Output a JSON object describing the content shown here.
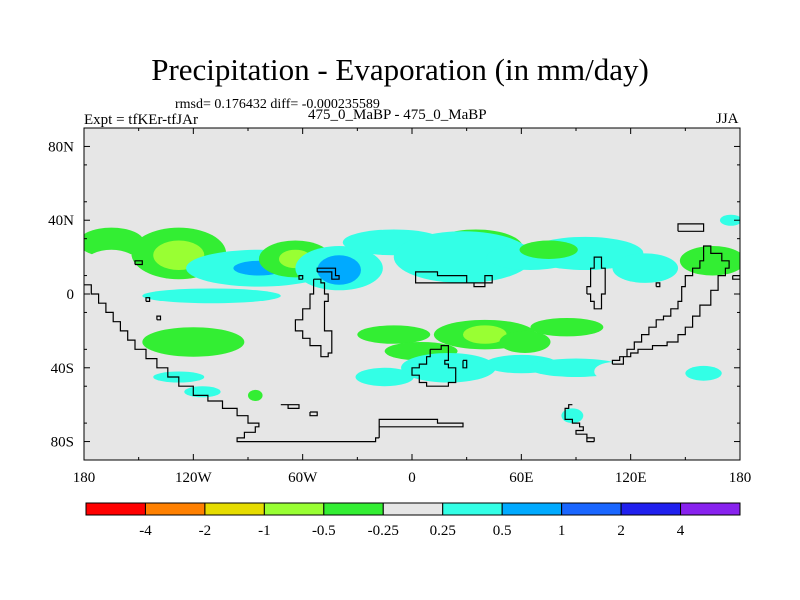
{
  "chart_data": {
    "type": "heatmap",
    "title": "Precipitation - Evaporation (in mm/day)",
    "stats_label": "rmsd= 0.176432 diff= -0.000235589",
    "experiment_label": "Expt = tfKEr-tfJAr",
    "period_label": "475_0_MaBP - 475_0_MaBP",
    "season_label": "JJA",
    "xlim": [
      -180,
      180
    ],
    "ylim": [
      -90,
      90
    ],
    "x_ticks": [
      {
        "v": -180,
        "label": "180"
      },
      {
        "v": -120,
        "label": "120W"
      },
      {
        "v": -60,
        "label": "60W"
      },
      {
        "v": 0,
        "label": "0"
      },
      {
        "v": 60,
        "label": "60E"
      },
      {
        "v": 120,
        "label": "120E"
      },
      {
        "v": 180,
        "label": "180"
      }
    ],
    "y_ticks": [
      {
        "v": 80,
        "label": "80N"
      },
      {
        "v": 40,
        "label": "40N"
      },
      {
        "v": 0,
        "label": "0"
      },
      {
        "v": -40,
        "label": "40S"
      },
      {
        "v": -80,
        "label": "80S"
      }
    ],
    "colorbar": {
      "colors": [
        "#ff0000",
        "#ff8000",
        "#e6dc00",
        "#99ff33",
        "#33ee33",
        "#e6e6e6",
        "#33ffe6",
        "#00aaff",
        "#1a66ff",
        "#2020ee",
        "#8822ee"
      ],
      "labels": [
        "-4",
        "-2",
        "-1",
        "-0.5",
        "-0.25",
        "0.25",
        "0.5",
        "1",
        "2",
        "4"
      ]
    },
    "background_color": "#e6e6e6",
    "regions": [
      {
        "lon": -165,
        "lat": 28,
        "w": 18,
        "h": 8,
        "level": -0.5
      },
      {
        "lon": -165,
        "lat": 17,
        "w": 14,
        "h": 7,
        "level": -0.25
      },
      {
        "lon": -128,
        "lat": 22,
        "w": 26,
        "h": 14,
        "level": -0.5
      },
      {
        "lon": -128,
        "lat": 21,
        "w": 14,
        "h": 8,
        "level": -1
      },
      {
        "lon": -84,
        "lat": 14,
        "w": 40,
        "h": 10,
        "level": 0.25
      },
      {
        "lon": -84,
        "lat": 14,
        "w": 14,
        "h": 4,
        "level": 0.5
      },
      {
        "lon": -64,
        "lat": 19,
        "w": 20,
        "h": 10,
        "level": -0.5
      },
      {
        "lon": -64,
        "lat": 19,
        "w": 9,
        "h": 5,
        "level": -1
      },
      {
        "lon": -40,
        "lat": 14,
        "w": 24,
        "h": 12,
        "level": 0.25
      },
      {
        "lon": -40,
        "lat": 13,
        "w": 12,
        "h": 8,
        "level": 0.5
      },
      {
        "lon": -110,
        "lat": -1,
        "w": 38,
        "h": 4,
        "level": 0.25
      },
      {
        "lon": -140,
        "lat": -33,
        "w": 10,
        "h": 5,
        "level": -0.25
      },
      {
        "lon": -120,
        "lat": -26,
        "w": 28,
        "h": 8,
        "level": -0.5
      },
      {
        "lon": -128,
        "lat": -45,
        "w": 14,
        "h": 3,
        "level": 0.25
      },
      {
        "lon": -115,
        "lat": -53,
        "w": 10,
        "h": 3,
        "level": 0.25
      },
      {
        "lon": -10,
        "lat": 28,
        "w": 28,
        "h": 7,
        "level": 0.25
      },
      {
        "lon": 35,
        "lat": 25,
        "w": 26,
        "h": 10,
        "level": -0.5
      },
      {
        "lon": 33,
        "lat": 25,
        "w": 12,
        "h": 5,
        "level": -1
      },
      {
        "lon": 28,
        "lat": 20,
        "w": 38,
        "h": 14,
        "level": 0.25
      },
      {
        "lon": 65,
        "lat": 20,
        "w": 24,
        "h": 7,
        "level": 0.25
      },
      {
        "lon": 95,
        "lat": 22,
        "w": 32,
        "h": 9,
        "level": 0.25
      },
      {
        "lon": 75,
        "lat": 24,
        "w": 16,
        "h": 5,
        "level": -0.5
      },
      {
        "lon": 128,
        "lat": 14,
        "w": 18,
        "h": 8,
        "level": 0.25
      },
      {
        "lon": 165,
        "lat": 18,
        "w": 18,
        "h": 8,
        "level": -0.5
      },
      {
        "lon": 175,
        "lat": 40,
        "w": 6,
        "h": 3,
        "level": 0.25
      },
      {
        "lon": -10,
        "lat": -22,
        "w": 20,
        "h": 5,
        "level": -0.5
      },
      {
        "lon": 5,
        "lat": -31,
        "w": 20,
        "h": 5,
        "level": -0.5
      },
      {
        "lon": 40,
        "lat": -22,
        "w": 28,
        "h": 8,
        "level": -0.5
      },
      {
        "lon": 40,
        "lat": -22,
        "w": 12,
        "h": 5,
        "level": -1
      },
      {
        "lon": 62,
        "lat": -26,
        "w": 14,
        "h": 6,
        "level": -0.5
      },
      {
        "lon": 85,
        "lat": -18,
        "w": 20,
        "h": 5,
        "level": -0.5
      },
      {
        "lon": -15,
        "lat": -45,
        "w": 16,
        "h": 5,
        "level": 0.25
      },
      {
        "lon": 20,
        "lat": -40,
        "w": 26,
        "h": 8,
        "level": 0.25
      },
      {
        "lon": 60,
        "lat": -38,
        "w": 20,
        "h": 5,
        "level": 0.25
      },
      {
        "lon": 90,
        "lat": -40,
        "w": 26,
        "h": 5,
        "level": 0.25
      },
      {
        "lon": 110,
        "lat": -42,
        "w": 10,
        "h": 5,
        "level": -0.25
      },
      {
        "lon": 160,
        "lat": -43,
        "w": 10,
        "h": 4,
        "level": 0.25
      },
      {
        "lon": -86,
        "lat": -55,
        "w": 4,
        "h": 3,
        "level": -0.5
      },
      {
        "lon": 88,
        "lat": -66,
        "w": 6,
        "h": 4,
        "level": 0.25
      }
    ],
    "coastlines": [
      [
        [
          -180,
          5
        ],
        [
          -176,
          5
        ],
        [
          -176,
          0
        ],
        [
          -172,
          0
        ],
        [
          -172,
          -5
        ],
        [
          -168,
          -5
        ],
        [
          -168,
          -10
        ],
        [
          -164,
          -10
        ],
        [
          -164,
          -15
        ],
        [
          -160,
          -15
        ],
        [
          -160,
          -20
        ],
        [
          -156,
          -20
        ],
        [
          -156,
          -25
        ],
        [
          -152,
          -25
        ],
        [
          -152,
          -30
        ],
        [
          -146,
          -30
        ],
        [
          -146,
          -35
        ],
        [
          -140,
          -35
        ],
        [
          -140,
          -40
        ],
        [
          -134,
          -40
        ],
        [
          -134,
          -45
        ],
        [
          -128,
          -45
        ],
        [
          -128,
          -50
        ],
        [
          -120,
          -50
        ],
        [
          -120,
          -55
        ],
        [
          -112,
          -55
        ],
        [
          -112,
          -58
        ],
        [
          -104,
          -58
        ],
        [
          -104,
          -62
        ],
        [
          -96,
          -62
        ],
        [
          -96,
          -66
        ],
        [
          -90,
          -66
        ],
        [
          -90,
          -70
        ],
        [
          -84,
          -70
        ],
        [
          -84,
          -72
        ],
        [
          -86,
          -72
        ],
        [
          -86,
          -75
        ],
        [
          -92,
          -75
        ],
        [
          -92,
          -78
        ],
        [
          -96,
          -78
        ],
        [
          -96,
          -80
        ],
        [
          -20,
          -80
        ],
        [
          -20,
          -78
        ],
        [
          -18,
          -78
        ]
      ],
      [
        [
          -18,
          -78
        ],
        [
          -18,
          -72
        ],
        [
          28,
          -72
        ],
        [
          28,
          -70
        ],
        [
          14,
          -70
        ],
        [
          14,
          -68
        ],
        [
          -18,
          -68
        ],
        [
          -18,
          -78
        ]
      ],
      [
        [
          -152,
          16
        ],
        [
          -148,
          16
        ],
        [
          -148,
          18
        ],
        [
          -152,
          18
        ],
        [
          -152,
          16
        ]
      ],
      [
        [
          -146,
          -4
        ],
        [
          -144,
          -4
        ],
        [
          -144,
          -2
        ],
        [
          -146,
          -2
        ],
        [
          -146,
          -4
        ]
      ],
      [
        [
          -140,
          -14
        ],
        [
          -138,
          -14
        ],
        [
          -138,
          -12
        ],
        [
          -140,
          -12
        ],
        [
          -140,
          -14
        ]
      ],
      [
        [
          -72,
          -60
        ],
        [
          -68,
          -60
        ],
        [
          -68,
          -62
        ],
        [
          -62,
          -62
        ],
        [
          -62,
          -60
        ],
        [
          -72,
          -60
        ]
      ],
      [
        [
          -56,
          -64
        ],
        [
          -52,
          -64
        ],
        [
          -52,
          -66
        ],
        [
          -56,
          -66
        ],
        [
          -56,
          -64
        ]
      ],
      [
        [
          -54,
          8
        ],
        [
          -50,
          8
        ],
        [
          -50,
          6
        ],
        [
          -48,
          6
        ],
        [
          -48,
          0
        ],
        [
          -46,
          0
        ],
        [
          -46,
          -4
        ],
        [
          -48,
          -4
        ],
        [
          -48,
          -20
        ],
        [
          -44,
          -20
        ],
        [
          -44,
          -32
        ],
        [
          -46,
          -32
        ],
        [
          -46,
          -34
        ],
        [
          -50,
          -34
        ],
        [
          -50,
          -28
        ],
        [
          -56,
          -28
        ],
        [
          -56,
          -24
        ],
        [
          -60,
          -24
        ],
        [
          -60,
          -20
        ],
        [
          -64,
          -20
        ],
        [
          -64,
          -14
        ],
        [
          -60,
          -14
        ],
        [
          -60,
          -8
        ],
        [
          -56,
          -8
        ],
        [
          -56,
          0
        ],
        [
          -54,
          0
        ],
        [
          -54,
          8
        ]
      ],
      [
        [
          -60,
          8
        ],
        [
          -62,
          8
        ],
        [
          -62,
          10
        ],
        [
          -60,
          10
        ],
        [
          -60,
          8
        ]
      ],
      [
        [
          -52,
          12
        ],
        [
          -44,
          12
        ],
        [
          -44,
          8
        ],
        [
          -40,
          8
        ],
        [
          -40,
          10
        ],
        [
          -42,
          10
        ],
        [
          -42,
          14
        ],
        [
          -52,
          14
        ],
        [
          -52,
          12
        ]
      ],
      [
        [
          2,
          8
        ],
        [
          2,
          12
        ],
        [
          14,
          12
        ],
        [
          14,
          10
        ],
        [
          30,
          10
        ],
        [
          30,
          6
        ],
        [
          40,
          6
        ],
        [
          40,
          10
        ],
        [
          44,
          10
        ],
        [
          44,
          6
        ],
        [
          40,
          6
        ],
        [
          40,
          4
        ],
        [
          34,
          4
        ],
        [
          34,
          6
        ],
        [
          2,
          6
        ],
        [
          2,
          8
        ]
      ],
      [
        [
          10,
          -30
        ],
        [
          16,
          -30
        ],
        [
          16,
          -28
        ],
        [
          20,
          -28
        ],
        [
          20,
          -36
        ],
        [
          18,
          -36
        ],
        [
          18,
          -38
        ],
        [
          20,
          -38
        ],
        [
          20,
          -40
        ],
        [
          24,
          -40
        ],
        [
          24,
          -48
        ],
        [
          20,
          -48
        ],
        [
          20,
          -50
        ],
        [
          8,
          -50
        ],
        [
          8,
          -48
        ],
        [
          4,
          -48
        ],
        [
          4,
          -44
        ],
        [
          0,
          -44
        ],
        [
          0,
          -40
        ],
        [
          4,
          -40
        ],
        [
          4,
          -38
        ],
        [
          8,
          -38
        ],
        [
          8,
          -34
        ],
        [
          10,
          -34
        ],
        [
          10,
          -30
        ]
      ],
      [
        [
          28,
          -36
        ],
        [
          30,
          -36
        ],
        [
          30,
          -40
        ],
        [
          28,
          -40
        ],
        [
          28,
          -36
        ]
      ],
      [
        [
          96,
          0
        ],
        [
          96,
          4
        ],
        [
          98,
          4
        ],
        [
          98,
          14
        ],
        [
          100,
          14
        ],
        [
          100,
          20
        ],
        [
          104,
          20
        ],
        [
          104,
          14
        ],
        [
          106,
          14
        ],
        [
          106,
          0
        ],
        [
          104,
          0
        ],
        [
          104,
          -8
        ],
        [
          100,
          -8
        ],
        [
          100,
          -4
        ],
        [
          98,
          -4
        ],
        [
          98,
          0
        ],
        [
          96,
          0
        ]
      ],
      [
        [
          110,
          -38
        ],
        [
          116,
          -38
        ],
        [
          116,
          -34
        ],
        [
          120,
          -34
        ],
        [
          120,
          -32
        ],
        [
          124,
          -32
        ],
        [
          124,
          -30
        ],
        [
          132,
          -30
        ],
        [
          132,
          -28
        ],
        [
          140,
          -28
        ],
        [
          140,
          -26
        ],
        [
          146,
          -26
        ],
        [
          146,
          -22
        ],
        [
          150,
          -22
        ],
        [
          150,
          -18
        ],
        [
          154,
          -18
        ],
        [
          154,
          -12
        ],
        [
          158,
          -12
        ],
        [
          158,
          -6
        ],
        [
          164,
          -6
        ],
        [
          164,
          2
        ],
        [
          168,
          2
        ],
        [
          168,
          10
        ],
        [
          172,
          10
        ],
        [
          172,
          14
        ],
        [
          174,
          14
        ],
        [
          174,
          18
        ],
        [
          170,
          18
        ],
        [
          170,
          22
        ],
        [
          164,
          22
        ],
        [
          164,
          26
        ],
        [
          160,
          26
        ],
        [
          160,
          18
        ],
        [
          158,
          18
        ],
        [
          158,
          14
        ],
        [
          154,
          14
        ],
        [
          154,
          10
        ],
        [
          150,
          10
        ],
        [
          150,
          4
        ],
        [
          148,
          4
        ],
        [
          148,
          -4
        ],
        [
          146,
          -4
        ],
        [
          146,
          -8
        ],
        [
          142,
          -8
        ],
        [
          142,
          -12
        ],
        [
          138,
          -12
        ],
        [
          138,
          -14
        ],
        [
          134,
          -14
        ],
        [
          134,
          -18
        ],
        [
          130,
          -18
        ],
        [
          130,
          -22
        ],
        [
          126,
          -22
        ],
        [
          126,
          -26
        ],
        [
          122,
          -26
        ],
        [
          122,
          -30
        ],
        [
          118,
          -30
        ],
        [
          118,
          -34
        ],
        [
          114,
          -34
        ],
        [
          114,
          -36
        ],
        [
          110,
          -36
        ],
        [
          110,
          -38
        ]
      ],
      [
        [
          134,
          4
        ],
        [
          136,
          4
        ],
        [
          136,
          6
        ],
        [
          134,
          6
        ],
        [
          134,
          4
        ]
      ],
      [
        [
          146,
          34
        ],
        [
          160,
          34
        ],
        [
          160,
          38
        ],
        [
          146,
          38
        ],
        [
          146,
          34
        ]
      ],
      [
        [
          176,
          10
        ],
        [
          180,
          10
        ],
        [
          180,
          8
        ],
        [
          176,
          8
        ],
        [
          176,
          10
        ]
      ],
      [
        [
          88,
          -60
        ],
        [
          86,
          -60
        ],
        [
          86,
          -62
        ],
        [
          84,
          -62
        ],
        [
          84,
          -68
        ],
        [
          88,
          -68
        ],
        [
          88,
          -70
        ],
        [
          92,
          -70
        ],
        [
          92,
          -72
        ],
        [
          94,
          -72
        ],
        [
          94,
          -74
        ],
        [
          90,
          -74
        ],
        [
          90,
          -76
        ],
        [
          96,
          -76
        ],
        [
          96,
          -78
        ],
        [
          100,
          -78
        ],
        [
          100,
          -80
        ]
      ],
      [
        [
          100,
          -80
        ],
        [
          96,
          -80
        ],
        [
          96,
          -78
        ]
      ]
    ]
  }
}
